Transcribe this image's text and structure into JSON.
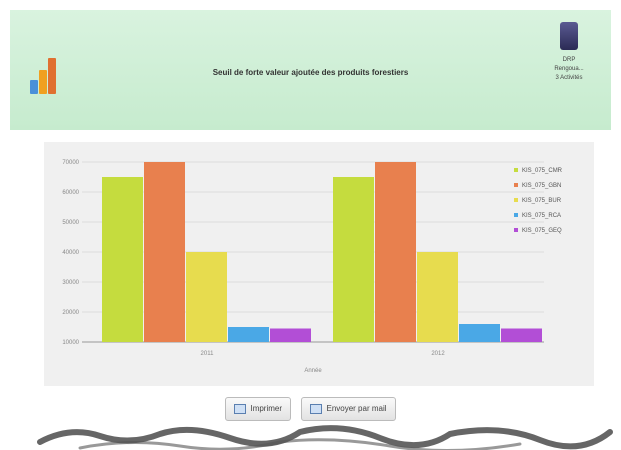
{
  "header": {
    "title": "Seuil de forte valeur ajoutée des produits forestiers",
    "user_line1": "DRP",
    "user_line2": "Rengoua...",
    "user_line3": "3 Activités"
  },
  "buttons": {
    "print_label": "Imprimer",
    "mail_label": "Envoyer par mail"
  },
  "chart_data": {
    "type": "bar",
    "categories": [
      "2011",
      "2012"
    ],
    "xlabel": "Année",
    "ylabel": "",
    "ylim": [
      10000,
      70000
    ],
    "y_ticks": [
      "70000",
      "60000",
      "50000",
      "40000",
      "30000",
      "20000",
      "10000"
    ],
    "legend_position": "right",
    "grid": true,
    "series": [
      {
        "name": "KIS_075_CMR",
        "color": "#c5dc3e",
        "values": [
          65000,
          65000
        ]
      },
      {
        "name": "KIS_075_GBN",
        "color": "#e8804e",
        "values": [
          70000,
          70000
        ]
      },
      {
        "name": "KIS_075_BUR",
        "color": "#e7dc4e",
        "values": [
          40000,
          40000
        ]
      },
      {
        "name": "KIS_075_RCA",
        "color": "#4aa8e6",
        "values": [
          15000,
          16000
        ]
      },
      {
        "name": "KIS_075_GEQ",
        "color": "#b24ed6",
        "values": [
          14500,
          14500
        ]
      }
    ]
  }
}
